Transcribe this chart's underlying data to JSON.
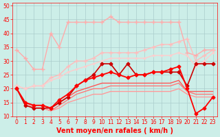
{
  "title": "",
  "xlabel": "Vent moyen/en rafales ( km/h )",
  "ylabel": "",
  "background_color": "#cceee8",
  "grid_color": "#aacccc",
  "xlim": [
    -0.5,
    23.5
  ],
  "ylim": [
    10,
    51
  ],
  "yticks": [
    10,
    15,
    20,
    25,
    30,
    35,
    40,
    45,
    50
  ],
  "xticks": [
    0,
    1,
    2,
    3,
    4,
    5,
    6,
    7,
    8,
    9,
    10,
    11,
    12,
    13,
    14,
    15,
    16,
    17,
    18,
    19,
    20,
    21,
    22,
    23
  ],
  "lines": [
    {
      "x": [
        0,
        1,
        2,
        3,
        4,
        5,
        6,
        7,
        8,
        9,
        10,
        11,
        12,
        13,
        14,
        15,
        16,
        17,
        18,
        19,
        20,
        21,
        22,
        23
      ],
      "y": [
        34,
        31,
        27,
        27,
        40,
        35,
        44,
        44,
        44,
        44,
        44,
        46,
        44,
        44,
        44,
        44,
        44,
        44,
        44,
        44,
        33,
        32,
        34,
        34
      ],
      "color": "#ffaaaa",
      "lw": 1.0,
      "marker": "+",
      "ms": 4,
      "zorder": 2
    },
    {
      "x": [
        0,
        1,
        2,
        3,
        4,
        5,
        6,
        7,
        8,
        9,
        10,
        11,
        12,
        13,
        14,
        15,
        16,
        17,
        18,
        19,
        20,
        21,
        22,
        23
      ],
      "y": [
        21,
        20,
        21,
        21,
        24,
        25,
        28,
        30,
        30,
        31,
        33,
        33,
        33,
        33,
        33,
        34,
        35,
        36,
        36,
        37,
        38,
        30,
        32,
        34
      ],
      "color": "#ffbbbb",
      "lw": 1.0,
      "marker": "+",
      "ms": 4,
      "zorder": 2
    },
    {
      "x": [
        0,
        1,
        2,
        3,
        4,
        5,
        6,
        7,
        8,
        9,
        10,
        11,
        12,
        13,
        14,
        15,
        16,
        17,
        18,
        19,
        20,
        21,
        22,
        23
      ],
      "y": [
        21,
        20,
        21,
        21,
        23,
        24,
        26,
        27,
        28,
        29,
        30,
        31,
        31,
        31,
        31,
        31,
        32,
        32,
        32,
        33,
        32,
        28,
        30,
        33
      ],
      "color": "#ffcccc",
      "lw": 1.0,
      "marker": "+",
      "ms": 3,
      "zorder": 2
    },
    {
      "x": [
        0,
        1,
        2,
        3,
        4,
        5,
        6,
        7,
        8,
        9,
        10,
        11,
        12,
        13,
        14,
        15,
        16,
        17,
        18,
        19,
        20,
        21,
        22,
        23
      ],
      "y": [
        20,
        14,
        13,
        13,
        13,
        15,
        17,
        21,
        23,
        25,
        29,
        29,
        25,
        29,
        25,
        25,
        26,
        26,
        26,
        26,
        21,
        29,
        29,
        29
      ],
      "color": "#cc0000",
      "lw": 1.2,
      "marker": "D",
      "ms": 2.5,
      "zorder": 5
    },
    {
      "x": [
        0,
        1,
        2,
        3,
        4,
        5,
        6,
        7,
        8,
        9,
        10,
        11,
        12,
        13,
        14,
        15,
        16,
        17,
        18,
        19,
        20,
        21,
        22,
        23
      ],
      "y": [
        20,
        15,
        14,
        14,
        13,
        16,
        18,
        21,
        23,
        24,
        25,
        26,
        25,
        24,
        25,
        25,
        26,
        26,
        27,
        28,
        20,
        11,
        13,
        17
      ],
      "color": "#ff0000",
      "lw": 1.3,
      "marker": "D",
      "ms": 2.5,
      "zorder": 6
    },
    {
      "x": [
        0,
        1,
        2,
        3,
        4,
        5,
        6,
        7,
        8,
        9,
        10,
        11,
        12,
        13,
        14,
        15,
        16,
        17,
        18,
        19,
        20,
        21,
        22,
        23
      ],
      "y": [
        20,
        15,
        14,
        14,
        13,
        15,
        17,
        19,
        20,
        21,
        22,
        22,
        22,
        22,
        22,
        22,
        22,
        22,
        22,
        23,
        19,
        19,
        19,
        19
      ],
      "color": "#ff5555",
      "lw": 1.0,
      "marker": null,
      "ms": 0,
      "zorder": 3
    },
    {
      "x": [
        0,
        1,
        2,
        3,
        4,
        5,
        6,
        7,
        8,
        9,
        10,
        11,
        12,
        13,
        14,
        15,
        16,
        17,
        18,
        19,
        20,
        21,
        22,
        23
      ],
      "y": [
        20,
        15,
        13,
        13,
        12,
        14,
        16,
        18,
        19,
        20,
        20,
        21,
        21,
        21,
        21,
        21,
        21,
        21,
        21,
        22,
        19,
        18,
        18,
        18
      ],
      "color": "#ff7777",
      "lw": 1.0,
      "marker": null,
      "ms": 0,
      "zorder": 3
    },
    {
      "x": [
        0,
        1,
        2,
        3,
        4,
        5,
        6,
        7,
        8,
        9,
        10,
        11,
        12,
        13,
        14,
        15,
        16,
        17,
        18,
        19,
        20,
        21,
        22,
        23
      ],
      "y": [
        20,
        15,
        13,
        13,
        12,
        13,
        15,
        16,
        17,
        18,
        18,
        19,
        19,
        19,
        19,
        19,
        19,
        19,
        19,
        20,
        18,
        17,
        17,
        17
      ],
      "color": "#ff9999",
      "lw": 1.0,
      "marker": null,
      "ms": 0,
      "zorder": 3
    }
  ],
  "xlabel_color": "#ff0000",
  "tick_color": "#ff0000",
  "label_fontsize": 7,
  "tick_fontsize": 5.5
}
